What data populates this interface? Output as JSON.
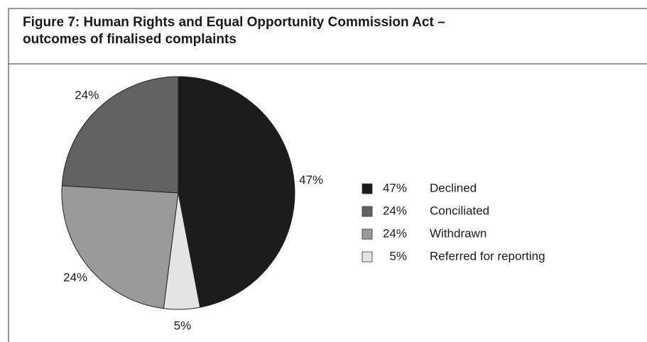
{
  "chart_data": {
    "type": "pie",
    "title": [
      "Figure 7: Human Rights and Equal Opportunity Commission Act –",
      "outcomes of finalised complaints"
    ],
    "categories": [
      "Declined",
      "Conciliated",
      "Withdrawn",
      "Referred for reporting"
    ],
    "values": [
      47,
      24,
      24,
      5
    ],
    "value_labels": [
      "47%",
      "24%",
      "24%",
      "5%"
    ],
    "colors": [
      "#1c1c1c",
      "#626262",
      "#9a9a9a",
      "#e4e4e4"
    ],
    "legend": "right"
  }
}
